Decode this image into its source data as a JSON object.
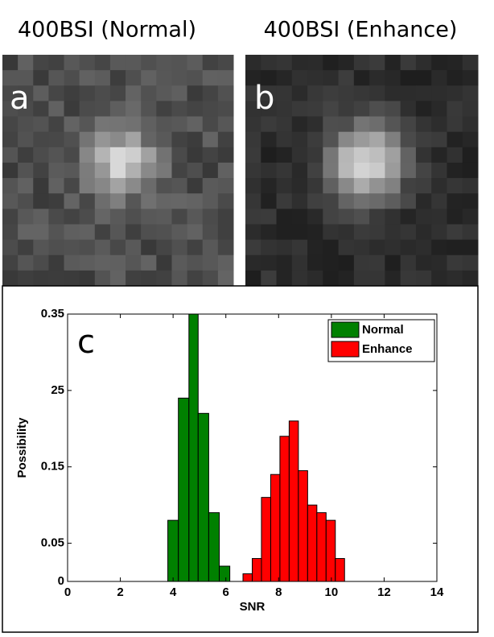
{
  "panels": [
    {
      "title": "400BSI (Normal)",
      "label": "a"
    },
    {
      "title": "400BSI (Enhance)",
      "label": "b"
    }
  ],
  "chart_data": {
    "type": "histogram",
    "annotation": "c",
    "xlabel": "SNR",
    "ylabel": "Possibility",
    "xlim": [
      0,
      14
    ],
    "xticks": [
      0,
      2,
      4,
      6,
      8,
      10,
      12,
      14
    ],
    "ylim": [
      0,
      0.35
    ],
    "yticks": [
      0,
      0.05,
      0.15,
      {
        "value": 0.25,
        "label": "25"
      },
      0.35
    ],
    "legend": "upper right",
    "series": [
      {
        "name": "Normal",
        "color": "#008000",
        "bins": [
          3.8,
          4.2,
          4.6,
          4.95,
          5.35,
          5.75,
          6.15
        ],
        "values": [
          0.08,
          0.24,
          0.35,
          0.22,
          0.09,
          0.02
        ]
      },
      {
        "name": "Enhance",
        "color": "#ff0000",
        "bins": [
          6.65,
          7.0,
          7.35,
          7.7,
          8.05,
          8.4,
          8.75,
          9.1,
          9.45,
          9.8,
          10.15,
          10.5
        ],
        "values": [
          0.01,
          0.03,
          0.11,
          0.14,
          0.19,
          0.21,
          0.145,
          0.1,
          0.09,
          0.08,
          0.03
        ]
      }
    ]
  }
}
